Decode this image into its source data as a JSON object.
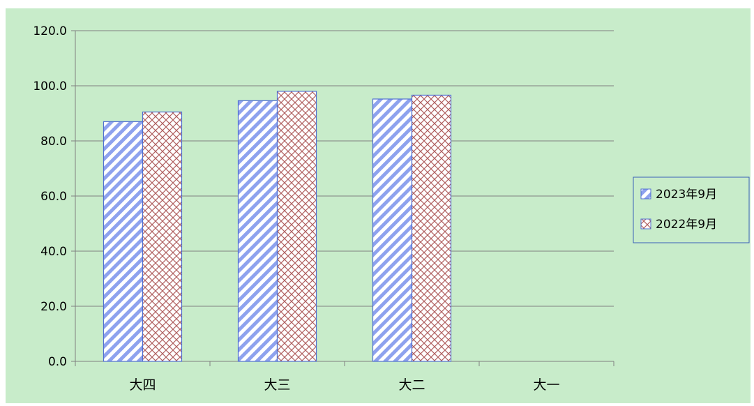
{
  "chart_data": {
    "type": "bar",
    "title": "",
    "xlabel": "",
    "ylabel": "",
    "categories": [
      "大四",
      "大三",
      "大二",
      "大一"
    ],
    "series": [
      {
        "name": "2023年9月",
        "values": [
          87.0,
          94.6,
          95.2,
          null
        ],
        "pattern": "diagonal-stripes"
      },
      {
        "name": "2022年9月",
        "values": [
          90.5,
          98.0,
          96.6,
          null
        ],
        "pattern": "crosshatch"
      }
    ],
    "ylim": [
      0,
      120
    ],
    "yticks": [
      "0.0",
      "20.0",
      "40.0",
      "60.0",
      "80.0",
      "100.0",
      "120.0"
    ],
    "grid": true,
    "legend_position": "right",
    "colors": {
      "background": "#c8ecca",
      "bar_border": "#4f6fd0",
      "series1_stripe": "#8ea2ee",
      "series2_hatch": "#b06060",
      "gridline": "#808080",
      "axis": "#808080",
      "legend_border": "#3a5fb8"
    }
  }
}
